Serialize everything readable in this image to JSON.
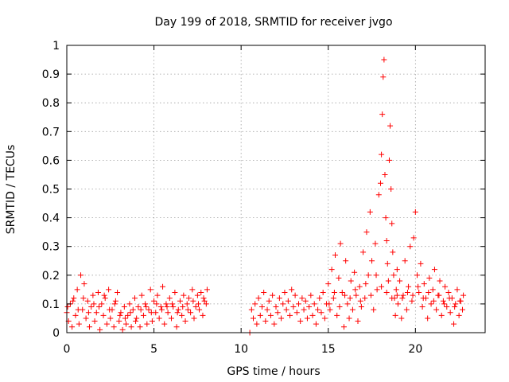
{
  "chart_data": {
    "type": "scatter",
    "title": "Day 199 of 2018, SRMTID for receiver jvgo",
    "xlabel": "GPS time / hours",
    "ylabel": "SRMTID / TECUs",
    "xlim": [
      0,
      24
    ],
    "ylim": [
      0,
      1
    ],
    "xticks": [
      0,
      5,
      10,
      15,
      20
    ],
    "yticks": [
      0,
      0.1,
      0.2,
      0.3,
      0.4,
      0.5,
      0.6,
      0.7,
      0.8,
      0.9,
      1
    ],
    "x_tick_labels": [
      "0",
      "5",
      "10",
      "15",
      "20"
    ],
    "y_tick_labels": [
      "0",
      "0.1",
      "0.2",
      "0.3",
      "0.4",
      "0.5",
      "0.6",
      "0.7",
      "0.8",
      "0.9",
      "1"
    ],
    "grid": true,
    "marker": "+",
    "color": "#ff0000",
    "series": [
      {
        "name": "SRMTID",
        "points": [
          [
            0.0,
            0.07
          ],
          [
            0.1,
            0.04
          ],
          [
            0.2,
            0.1
          ],
          [
            0.3,
            0.02
          ],
          [
            0.4,
            0.12
          ],
          [
            0.5,
            0.06
          ],
          [
            0.6,
            0.15
          ],
          [
            0.7,
            0.03
          ],
          [
            0.8,
            0.2
          ],
          [
            0.9,
            0.08
          ],
          [
            1.0,
            0.17
          ],
          [
            1.1,
            0.05
          ],
          [
            1.2,
            0.11
          ],
          [
            1.3,
            0.02
          ],
          [
            1.4,
            0.09
          ],
          [
            1.5,
            0.13
          ],
          [
            1.6,
            0.04
          ],
          [
            1.7,
            0.07
          ],
          [
            1.8,
            0.14
          ],
          [
            1.9,
            0.01
          ],
          [
            2.0,
            0.1
          ],
          [
            2.1,
            0.06
          ],
          [
            2.2,
            0.12
          ],
          [
            2.3,
            0.03
          ],
          [
            2.4,
            0.15
          ],
          [
            2.5,
            0.05
          ],
          [
            2.6,
            0.08
          ],
          [
            2.7,
            0.02
          ],
          [
            2.8,
            0.11
          ],
          [
            2.9,
            0.14
          ],
          [
            3.0,
            0.04
          ],
          [
            3.1,
            0.07
          ],
          [
            3.2,
            0.01
          ],
          [
            3.3,
            0.09
          ],
          [
            3.4,
            0.03
          ],
          [
            3.5,
            0.06
          ],
          [
            3.6,
            0.1
          ],
          [
            3.7,
            0.02
          ],
          [
            3.8,
            0.08
          ],
          [
            3.9,
            0.12
          ],
          [
            4.0,
            0.05
          ],
          [
            4.1,
            0.09
          ],
          [
            4.2,
            0.02
          ],
          [
            4.3,
            0.13
          ],
          [
            4.4,
            0.06
          ],
          [
            4.5,
            0.1
          ],
          [
            4.6,
            0.03
          ],
          [
            4.7,
            0.08
          ],
          [
            4.8,
            0.15
          ],
          [
            4.9,
            0.04
          ],
          [
            5.0,
            0.11
          ],
          [
            5.1,
            0.07
          ],
          [
            5.2,
            0.13
          ],
          [
            5.3,
            0.05
          ],
          [
            5.4,
            0.09
          ],
          [
            5.5,
            0.16
          ],
          [
            5.6,
            0.03
          ],
          [
            5.7,
            0.1
          ],
          [
            5.8,
            0.07
          ],
          [
            5.9,
            0.12
          ],
          [
            6.0,
            0.05
          ],
          [
            6.1,
            0.09
          ],
          [
            6.2,
            0.14
          ],
          [
            6.3,
            0.02
          ],
          [
            6.4,
            0.08
          ],
          [
            6.5,
            0.11
          ],
          [
            6.6,
            0.06
          ],
          [
            6.7,
            0.13
          ],
          [
            6.8,
            0.04
          ],
          [
            6.9,
            0.1
          ],
          [
            7.0,
            0.12
          ],
          [
            7.1,
            0.07
          ],
          [
            7.2,
            0.15
          ],
          [
            7.3,
            0.05
          ],
          [
            7.4,
            0.09
          ],
          [
            7.5,
            0.13
          ],
          [
            7.6,
            0.08
          ],
          [
            7.7,
            0.14
          ],
          [
            7.8,
            0.06
          ],
          [
            7.9,
            0.11
          ],
          [
            8.0,
            0.1
          ],
          [
            8.05,
            0.15
          ],
          [
            0.05,
            0.09
          ],
          [
            0.35,
            0.11
          ],
          [
            0.65,
            0.08
          ],
          [
            0.95,
            0.12
          ],
          [
            1.25,
            0.07
          ],
          [
            1.55,
            0.1
          ],
          [
            1.85,
            0.09
          ],
          [
            2.15,
            0.13
          ],
          [
            2.45,
            0.08
          ],
          [
            2.75,
            0.1
          ],
          [
            3.05,
            0.06
          ],
          [
            3.35,
            0.05
          ],
          [
            3.65,
            0.07
          ],
          [
            3.95,
            0.04
          ],
          [
            4.25,
            0.08
          ],
          [
            4.55,
            0.09
          ],
          [
            4.85,
            0.07
          ],
          [
            5.15,
            0.1
          ],
          [
            5.45,
            0.08
          ],
          [
            5.75,
            0.09
          ],
          [
            6.05,
            0.1
          ],
          [
            6.35,
            0.07
          ],
          [
            6.65,
            0.09
          ],
          [
            6.95,
            0.08
          ],
          [
            7.25,
            0.11
          ],
          [
            7.55,
            0.1
          ],
          [
            7.85,
            0.12
          ],
          [
            10.5,
            0.0
          ],
          [
            10.6,
            0.08
          ],
          [
            10.7,
            0.05
          ],
          [
            10.8,
            0.1
          ],
          [
            10.9,
            0.03
          ],
          [
            11.0,
            0.12
          ],
          [
            11.1,
            0.06
          ],
          [
            11.2,
            0.09
          ],
          [
            11.3,
            0.14
          ],
          [
            11.4,
            0.04
          ],
          [
            11.5,
            0.08
          ],
          [
            11.6,
            0.11
          ],
          [
            11.7,
            0.06
          ],
          [
            11.8,
            0.13
          ],
          [
            11.9,
            0.03
          ],
          [
            12.0,
            0.09
          ],
          [
            12.1,
            0.07
          ],
          [
            12.2,
            0.12
          ],
          [
            12.3,
            0.05
          ],
          [
            12.4,
            0.1
          ],
          [
            12.5,
            0.14
          ],
          [
            12.6,
            0.08
          ],
          [
            12.7,
            0.11
          ],
          [
            12.8,
            0.06
          ],
          [
            12.9,
            0.15
          ],
          [
            13.0,
            0.09
          ],
          [
            13.1,
            0.13
          ],
          [
            13.2,
            0.07
          ],
          [
            13.3,
            0.1
          ],
          [
            13.4,
            0.04
          ],
          [
            13.5,
            0.12
          ],
          [
            13.6,
            0.08
          ],
          [
            13.7,
            0.11
          ],
          [
            13.8,
            0.05
          ],
          [
            13.9,
            0.09
          ],
          [
            14.0,
            0.13
          ],
          [
            14.1,
            0.06
          ],
          [
            14.2,
            0.1
          ],
          [
            14.3,
            0.03
          ],
          [
            14.4,
            0.08
          ],
          [
            14.5,
            0.12
          ],
          [
            14.6,
            0.07
          ],
          [
            14.7,
            0.14
          ],
          [
            14.8,
            0.05
          ],
          [
            14.9,
            0.1
          ],
          [
            15.0,
            0.17
          ],
          [
            15.1,
            0.08
          ],
          [
            15.2,
            0.22
          ],
          [
            15.3,
            0.12
          ],
          [
            15.4,
            0.27
          ],
          [
            15.5,
            0.06
          ],
          [
            15.6,
            0.19
          ],
          [
            15.7,
            0.31
          ],
          [
            15.8,
            0.14
          ],
          [
            15.9,
            0.02
          ],
          [
            16.0,
            0.25
          ],
          [
            16.1,
            0.1
          ],
          [
            16.2,
            0.05
          ],
          [
            16.3,
            0.18
          ],
          [
            16.4,
            0.08
          ],
          [
            16.5,
            0.21
          ],
          [
            16.6,
            0.13
          ],
          [
            16.7,
            0.04
          ],
          [
            16.8,
            0.16
          ],
          [
            16.9,
            0.09
          ],
          [
            17.0,
            0.28
          ],
          [
            17.1,
            0.12
          ],
          [
            17.2,
            0.35
          ],
          [
            17.3,
            0.2
          ],
          [
            17.4,
            0.42
          ],
          [
            17.5,
            0.25
          ],
          [
            17.6,
            0.08
          ],
          [
            17.7,
            0.31
          ],
          [
            17.8,
            0.15
          ],
          [
            17.9,
            0.48
          ],
          [
            18.0,
            0.52
          ],
          [
            18.05,
            0.62
          ],
          [
            18.1,
            0.76
          ],
          [
            18.15,
            0.89
          ],
          [
            18.2,
            0.95
          ],
          [
            18.25,
            0.55
          ],
          [
            18.3,
            0.4
          ],
          [
            18.35,
            0.32
          ],
          [
            18.4,
            0.24
          ],
          [
            18.45,
            0.18
          ],
          [
            18.5,
            0.6
          ],
          [
            18.55,
            0.72
          ],
          [
            18.6,
            0.5
          ],
          [
            18.65,
            0.38
          ],
          [
            18.7,
            0.28
          ],
          [
            18.75,
            0.2
          ],
          [
            18.8,
            0.12
          ],
          [
            18.85,
            0.06
          ],
          [
            18.9,
            0.15
          ],
          [
            18.95,
            0.22
          ],
          [
            19.0,
            0.1
          ],
          [
            19.1,
            0.18
          ],
          [
            19.2,
            0.05
          ],
          [
            19.3,
            0.13
          ],
          [
            19.4,
            0.25
          ],
          [
            19.5,
            0.08
          ],
          [
            19.6,
            0.16
          ],
          [
            19.7,
            0.3
          ],
          [
            19.8,
            0.11
          ],
          [
            19.9,
            0.33
          ],
          [
            20.0,
            0.42
          ],
          [
            20.1,
            0.2
          ],
          [
            20.2,
            0.14
          ],
          [
            20.3,
            0.24
          ],
          [
            20.4,
            0.09
          ],
          [
            20.5,
            0.17
          ],
          [
            20.6,
            0.12
          ],
          [
            20.7,
            0.05
          ],
          [
            20.8,
            0.19
          ],
          [
            20.9,
            0.1
          ],
          [
            21.0,
            0.15
          ],
          [
            21.1,
            0.22
          ],
          [
            21.2,
            0.08
          ],
          [
            21.3,
            0.13
          ],
          [
            21.4,
            0.18
          ],
          [
            21.5,
            0.06
          ],
          [
            21.6,
            0.11
          ],
          [
            21.7,
            0.16
          ],
          [
            21.8,
            0.09
          ],
          [
            21.9,
            0.14
          ],
          [
            22.0,
            0.07
          ],
          [
            22.1,
            0.12
          ],
          [
            22.2,
            0.03
          ],
          [
            22.3,
            0.1
          ],
          [
            22.4,
            0.15
          ],
          [
            22.5,
            0.06
          ],
          [
            22.6,
            0.11
          ],
          [
            22.7,
            0.08
          ],
          [
            22.75,
            0.13
          ],
          [
            15.05,
            0.1
          ],
          [
            15.35,
            0.14
          ],
          [
            15.65,
            0.09
          ],
          [
            15.95,
            0.13
          ],
          [
            16.25,
            0.12
          ],
          [
            16.55,
            0.15
          ],
          [
            16.85,
            0.11
          ],
          [
            17.15,
            0.17
          ],
          [
            17.45,
            0.13
          ],
          [
            17.75,
            0.2
          ],
          [
            18.05,
            0.16
          ],
          [
            18.35,
            0.14
          ],
          [
            18.65,
            0.12
          ],
          [
            18.95,
            0.13
          ],
          [
            19.25,
            0.12
          ],
          [
            19.55,
            0.14
          ],
          [
            19.85,
            0.13
          ],
          [
            20.15,
            0.16
          ],
          [
            20.45,
            0.12
          ],
          [
            20.75,
            0.14
          ],
          [
            21.05,
            0.11
          ],
          [
            21.35,
            0.13
          ],
          [
            21.65,
            0.1
          ],
          [
            21.95,
            0.12
          ],
          [
            22.25,
            0.09
          ],
          [
            22.55,
            0.11
          ]
        ]
      }
    ]
  }
}
